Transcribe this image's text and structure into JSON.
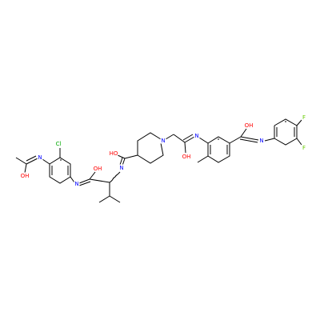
{
  "atoms": [
    {
      "label": "OH"
    },
    {
      "label": "N"
    },
    {
      "label": "Cl"
    },
    {
      "label": "N"
    },
    {
      "label": "OH"
    },
    {
      "label": "N"
    },
    {
      "label": "HO"
    },
    {
      "label": "N"
    },
    {
      "label": "OH"
    },
    {
      "label": "N"
    },
    {
      "label": "OH"
    },
    {
      "label": "N"
    },
    {
      "label": "F"
    },
    {
      "label": "F"
    }
  ]
}
